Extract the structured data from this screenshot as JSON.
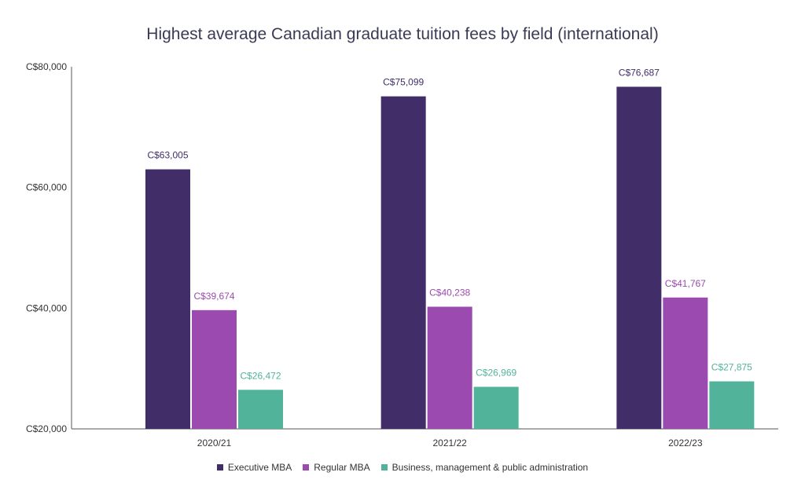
{
  "chart_data": {
    "type": "bar",
    "title": "Highest average Canadian graduate tuition fees by field (international)",
    "categories": [
      "2020/21",
      "2021/22",
      "2022/23"
    ],
    "series": [
      {
        "name": "Executive MBA",
        "color": "#412e69",
        "values": [
          63005,
          75099,
          76687
        ],
        "labels": [
          "C$63,005",
          "C$75,099",
          "C$76,687"
        ]
      },
      {
        "name": "Regular MBA",
        "color": "#9b4aaf",
        "values": [
          39674,
          40238,
          41767
        ],
        "labels": [
          "C$39,674",
          "C$40,238",
          "C$41,767"
        ]
      },
      {
        "name": "Business, management & public administration",
        "color": "#52b39b",
        "values": [
          26472,
          26969,
          27875
        ],
        "labels": [
          "C$26,472",
          "C$26,969",
          "C$27,875"
        ]
      }
    ],
    "ylim": [
      20000,
      80000
    ],
    "yticks": [
      20000,
      40000,
      60000,
      80000
    ],
    "ytick_labels": [
      "C$20,000",
      "C$40,000",
      "C$60,000",
      "C$80,000"
    ],
    "xlabel": "",
    "ylabel": "",
    "grid": false,
    "legend_position": "bottom"
  }
}
